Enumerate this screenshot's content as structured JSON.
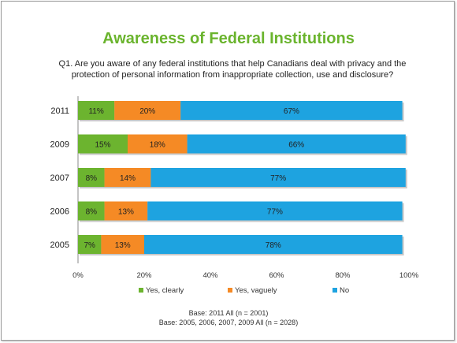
{
  "title": "Awareness of Federal Institutions",
  "question": "Q1. Are you aware of any federal institutions that help Canadians deal with privacy and the protection of personal information from inappropriate collection, use and disclosure?",
  "base_lines": [
    "Base: 2011 All (n = 2001)",
    "Base: 2005, 2006, 2007, 2009 All (n = 2028)"
  ],
  "colors": {
    "title": "#6ab42d",
    "series": [
      "#6cb42f",
      "#f58a25",
      "#1ea3e0"
    ]
  },
  "chart_data": {
    "type": "bar",
    "orientation": "horizontal",
    "stacked": true,
    "categories": [
      "2011",
      "2009",
      "2007",
      "2006",
      "2005"
    ],
    "series": [
      {
        "name": "Yes, clearly",
        "values": [
          11,
          15,
          8,
          8,
          7
        ],
        "labels": [
          "11%",
          "15%",
          "8%",
          "8%",
          "7%"
        ]
      },
      {
        "name": "Yes, vaguely",
        "values": [
          20,
          18,
          14,
          13,
          13
        ],
        "labels": [
          "20%",
          "18%",
          "14%",
          "13%",
          "13%"
        ]
      },
      {
        "name": "No",
        "values": [
          67,
          66,
          77,
          77,
          78
        ],
        "labels": [
          "67%",
          "66%",
          "77%",
          "77%",
          "78%"
        ]
      }
    ],
    "xlim": [
      0,
      100
    ],
    "xticks": [
      "0%",
      "20%",
      "40%",
      "60%",
      "80%",
      "100%"
    ],
    "legend_position": "bottom"
  }
}
